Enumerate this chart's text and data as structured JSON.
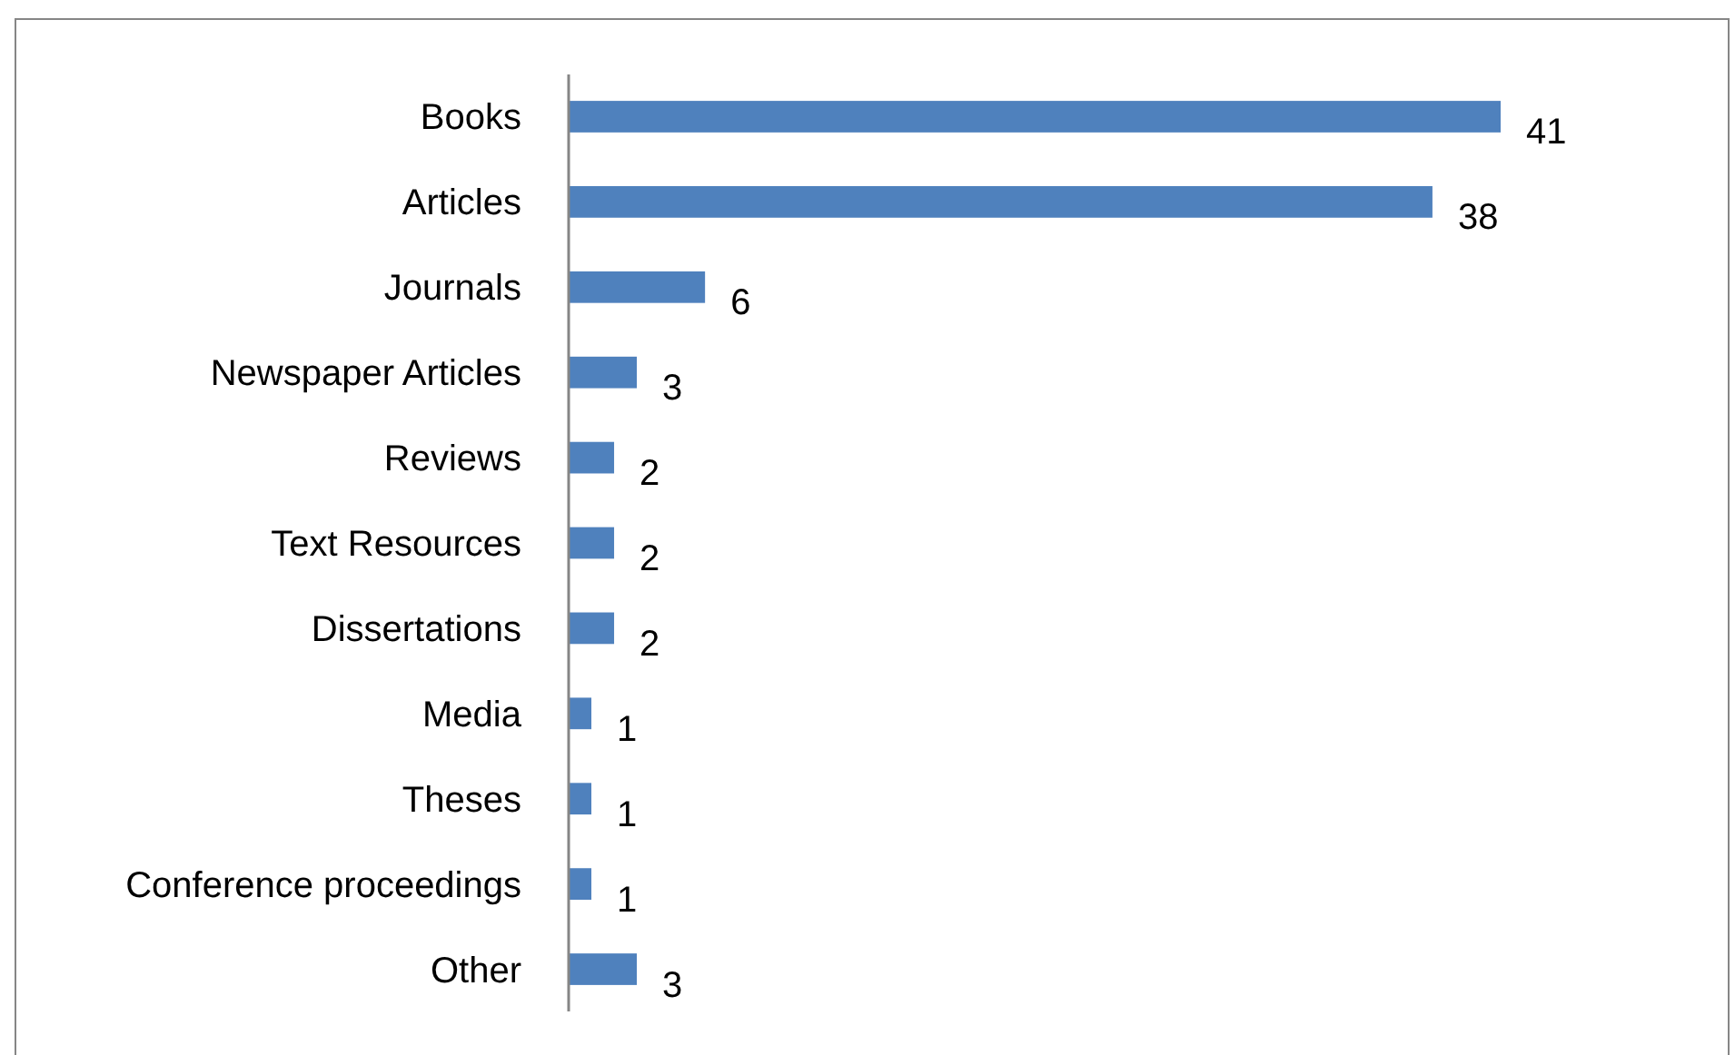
{
  "chart_data": {
    "type": "bar",
    "orientation": "horizontal",
    "categories": [
      "Books",
      "Articles",
      "Journals",
      "Newspaper Articles",
      "Reviews",
      "Text Resources",
      "Dissertations",
      "Media",
      "Theses",
      "Conference proceedings",
      "Other"
    ],
    "values": [
      41,
      38,
      6,
      3,
      2,
      2,
      2,
      1,
      1,
      1,
      3
    ],
    "color": "#4f81bd",
    "data_labels": true
  }
}
